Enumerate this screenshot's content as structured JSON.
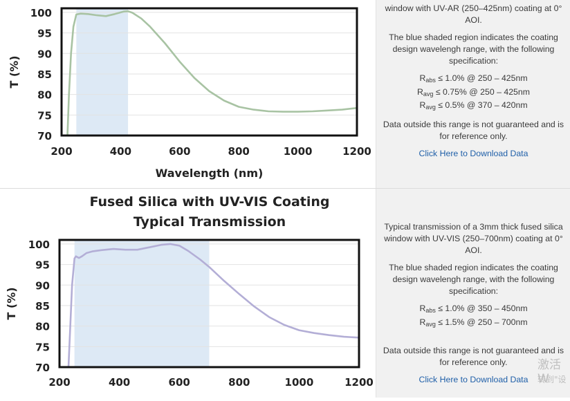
{
  "chart_data": [
    {
      "type": "line",
      "title": "",
      "subtitle": "",
      "xlabel": "Wavelength (nm)",
      "ylabel": "T (%)",
      "xlim": [
        200,
        1200
      ],
      "ylim": [
        70,
        101
      ],
      "xticks": [
        "200",
        "400",
        "600",
        "800",
        "1000",
        "1200"
      ],
      "yticks": [
        "70",
        "75",
        "80",
        "85",
        "90",
        "95",
        "100"
      ],
      "shaded_region": [
        250,
        425
      ],
      "shaded_color": "#dde9f5",
      "line_color": "#a8c3a3",
      "grid": "horizontal",
      "series": [
        {
          "name": "",
          "x": [
            220,
            225,
            232,
            240,
            250,
            265,
            290,
            320,
            350,
            380,
            410,
            425,
            440,
            470,
            500,
            550,
            600,
            650,
            700,
            750,
            800,
            850,
            900,
            950,
            1000,
            1050,
            1100,
            1150,
            1200
          ],
          "y": [
            70,
            80,
            90,
            96.5,
            99.5,
            99.7,
            99.6,
            99.3,
            99.1,
            99.6,
            100.2,
            100.3,
            99.9,
            98.5,
            96.5,
            92.5,
            88.0,
            84.0,
            80.8,
            78.5,
            77.0,
            76.3,
            75.9,
            75.8,
            75.8,
            75.9,
            76.1,
            76.3,
            76.7
          ]
        }
      ]
    },
    {
      "type": "line",
      "title": "Fused Silica with UV-VIS Coating",
      "subtitle": "Typical Transmission",
      "xlabel": "",
      "ylabel": "T (%)",
      "xlim": [
        200,
        1200
      ],
      "ylim": [
        70,
        101
      ],
      "xticks": [
        "200",
        "400",
        "600",
        "800",
        "1000",
        "1200"
      ],
      "yticks": [
        "70",
        "75",
        "80",
        "85",
        "90",
        "95",
        "100"
      ],
      "shaded_region": [
        250,
        700
      ],
      "shaded_color": "#dde9f5",
      "line_color": "#b3aed6",
      "grid": "horizontal",
      "series": [
        {
          "name": "",
          "x": [
            230,
            236,
            242,
            250,
            255,
            265,
            275,
            290,
            310,
            340,
            380,
            420,
            460,
            500,
            540,
            570,
            600,
            630,
            670,
            700,
            750,
            800,
            850,
            900,
            950,
            1000,
            1050,
            1100,
            1150,
            1200
          ],
          "y": [
            70,
            80,
            90,
            96.5,
            97.0,
            96.6,
            97.0,
            97.8,
            98.2,
            98.5,
            98.8,
            98.6,
            98.6,
            99.2,
            99.8,
            100.0,
            99.6,
            98.3,
            96.2,
            94.4,
            91.0,
            87.8,
            84.8,
            82.2,
            80.3,
            79.0,
            78.3,
            77.8,
            77.4,
            77.2
          ]
        }
      ]
    }
  ],
  "panels": [
    {
      "intro_tail": "window with UV-AR (250–425nm) coating at 0° AOI.",
      "region_text": "The blue shaded region indicates the coating design wavelengh range, with the following specification:",
      "specs": [
        {
          "sym": "R",
          "sub": "abs",
          "text": " ≤ 1.0% @ 250 – 425nm"
        },
        {
          "sym": "R",
          "sub": "avg",
          "text": " ≤ 0.75% @ 250 – 425nm"
        },
        {
          "sym": "R",
          "sub": "avg",
          "text": " ≤ 0.5% @ 370 – 420nm"
        }
      ],
      "disclaimer": "Data outside this range is not guaranteed and is for reference only.",
      "download_label": "Click Here to Download Data"
    },
    {
      "intro": "Typical transmission of a 3mm thick fused silica window with UV-VIS (250–700nm) coating at 0° AOI.",
      "region_text": "The blue shaded region indicates the coating design wavelengh range, with the following specification:",
      "specs": [
        {
          "sym": "R",
          "sub": "abs",
          "text": " ≤ 1.0% @ 350 – 450nm"
        },
        {
          "sym": "R",
          "sub": "avg",
          "text": " ≤ 1.5% @ 250 – 700nm"
        }
      ],
      "disclaimer": "Data outside this range is not guaranteed and is for reference only.",
      "download_label": "Click Here to Download Data"
    }
  ],
  "watermark": {
    "line1": "激活 W",
    "line2": "转到\"设"
  }
}
